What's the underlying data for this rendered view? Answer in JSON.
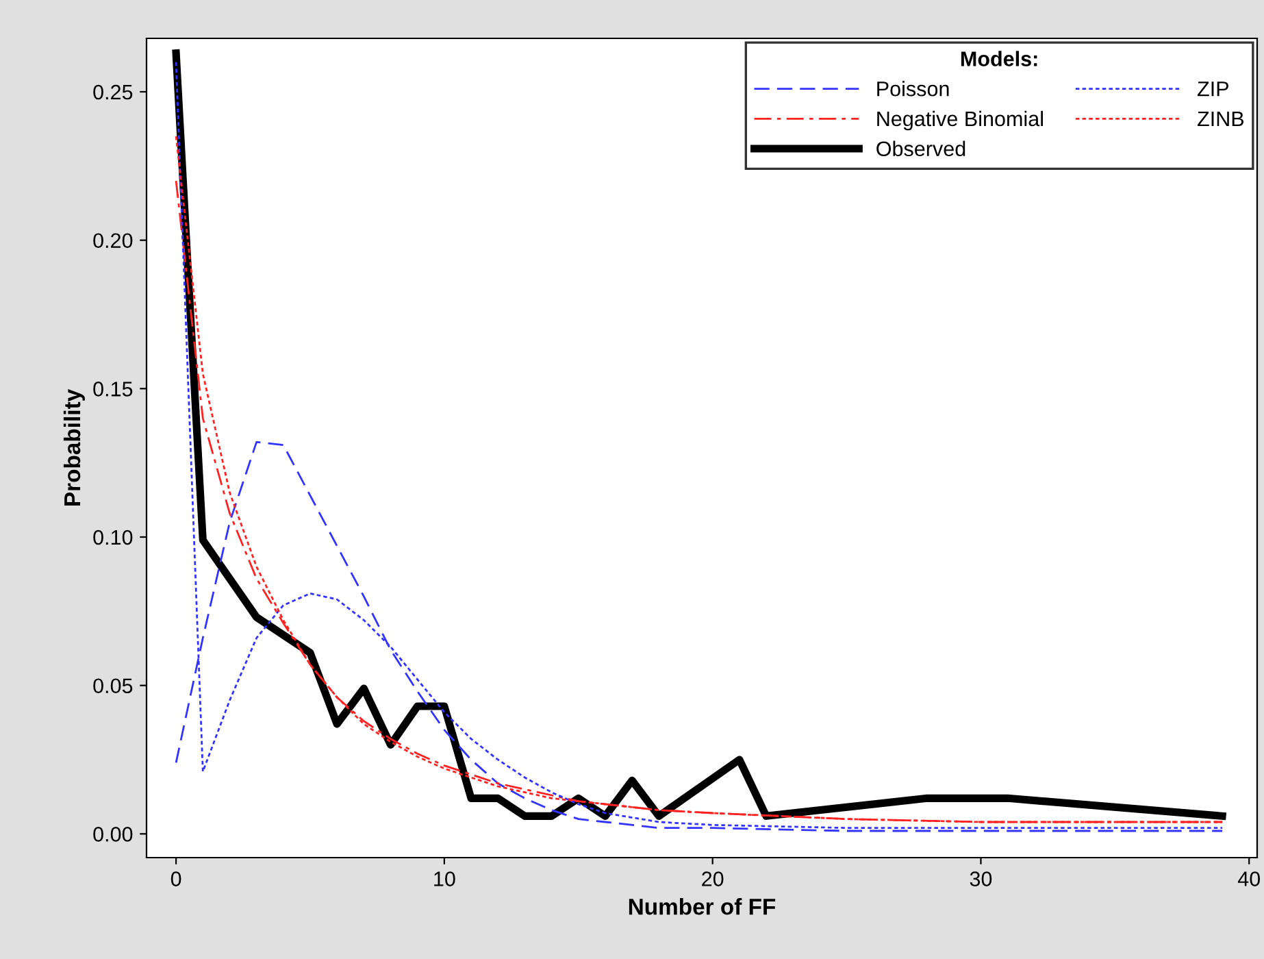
{
  "chart_data": {
    "type": "line",
    "xlabel": "Number of FF",
    "ylabel": "Probability",
    "legend_title": "Models:",
    "legend": "top right",
    "grid": false,
    "xlim": [
      -1.1,
      40.3
    ],
    "xticks": [
      0,
      10,
      20,
      30,
      40
    ],
    "ylim": [
      -0.008,
      0.268
    ],
    "yticks": [
      {
        "value": 0,
        "label": "0.00"
      },
      {
        "value": 0.05,
        "label": "0.05"
      },
      {
        "value": 0.1,
        "label": "0.10"
      },
      {
        "value": 0.15,
        "label": "0.15"
      },
      {
        "value": 0.2,
        "label": "0.20"
      },
      {
        "value": 0.25,
        "label": "0.25"
      }
    ],
    "series": [
      {
        "name": "Poisson",
        "color": "#3333ff",
        "line_style": "dashed",
        "x": [
          0,
          1,
          2,
          3,
          4,
          5,
          6,
          7,
          8,
          9,
          10,
          11,
          12,
          13,
          14,
          15,
          16,
          18,
          20,
          25,
          30,
          39
        ],
        "values": [
          0.024,
          0.066,
          0.105,
          0.132,
          0.131,
          0.114,
          0.097,
          0.08,
          0.062,
          0.048,
          0.035,
          0.025,
          0.017,
          0.012,
          0.008,
          0.005,
          0.004,
          0.002,
          0.002,
          0.001,
          0.001,
          0.001
        ]
      },
      {
        "name": "Negative Binomial",
        "color": "#ff2222",
        "line_style": "dashdot",
        "x": [
          0,
          1,
          2,
          3,
          4,
          5,
          6,
          7,
          8,
          9,
          10,
          11,
          12,
          13,
          14,
          15,
          16,
          18,
          20,
          25,
          30,
          39
        ],
        "values": [
          0.22,
          0.14,
          0.108,
          0.086,
          0.071,
          0.057,
          0.046,
          0.038,
          0.032,
          0.027,
          0.023,
          0.02,
          0.017,
          0.015,
          0.013,
          0.011,
          0.01,
          0.008,
          0.007,
          0.005,
          0.004,
          0.004
        ]
      },
      {
        "name": "Observed",
        "color": "#000000",
        "line_style": "solid",
        "x": [
          0,
          1,
          3,
          5,
          6,
          7,
          8,
          9,
          10,
          11,
          12,
          13,
          14,
          15,
          16,
          17,
          18,
          21,
          22,
          28,
          31,
          39
        ],
        "values": [
          0.263,
          0.099,
          0.073,
          0.061,
          0.037,
          0.049,
          0.03,
          0.043,
          0.043,
          0.012,
          0.012,
          0.006,
          0.006,
          0.012,
          0.006,
          0.018,
          0.006,
          0.025,
          0.006,
          0.012,
          0.012,
          0.006
        ]
      },
      {
        "name": "ZIP",
        "color": "#3333ff",
        "line_style": "dotted",
        "x": [
          0,
          1,
          2,
          3,
          4,
          5,
          6,
          7,
          8,
          9,
          10,
          11,
          12,
          13,
          14,
          15,
          16,
          18,
          20,
          25,
          30,
          39
        ],
        "values": [
          0.26,
          0.021,
          0.045,
          0.066,
          0.077,
          0.081,
          0.079,
          0.072,
          0.063,
          0.052,
          0.041,
          0.032,
          0.025,
          0.019,
          0.014,
          0.01,
          0.007,
          0.004,
          0.003,
          0.002,
          0.002,
          0.002
        ]
      },
      {
        "name": "ZINB",
        "color": "#ff2222",
        "line_style": "dotted",
        "x": [
          0,
          1,
          2,
          3,
          4,
          5,
          6,
          7,
          8,
          9,
          10,
          11,
          12,
          13,
          14,
          15,
          16,
          18,
          20,
          25,
          30,
          39
        ],
        "values": [
          0.235,
          0.155,
          0.115,
          0.09,
          0.072,
          0.057,
          0.046,
          0.037,
          0.031,
          0.026,
          0.022,
          0.019,
          0.016,
          0.014,
          0.012,
          0.011,
          0.01,
          0.008,
          0.007,
          0.005,
          0.004,
          0.004
        ]
      }
    ]
  }
}
